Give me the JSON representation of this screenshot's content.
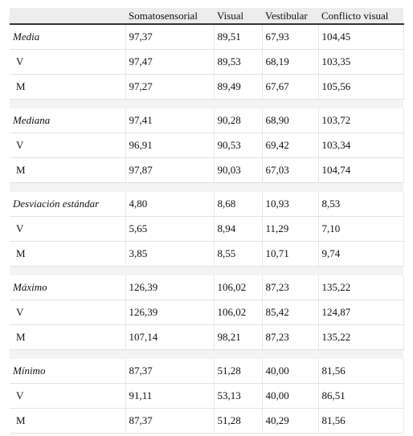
{
  "table": {
    "header": [
      "Somatosensorial",
      "Visual",
      "Vestibular",
      "Conflicto visual"
    ],
    "groups": [
      {
        "label": "Media",
        "values": [
          "97,37",
          "89,51",
          "67,93",
          "104,45"
        ],
        "rows": [
          {
            "label": "V",
            "values": [
              "97,47",
              "89,53",
              "68,19",
              "103,35"
            ]
          },
          {
            "label": "M",
            "values": [
              "97,27",
              "89,49",
              "67,67",
              "105,56"
            ]
          }
        ]
      },
      {
        "label": "Mediana",
        "values": [
          "97,41",
          "90,28",
          "68,90",
          "103,72"
        ],
        "rows": [
          {
            "label": "V",
            "values": [
              "96,91",
              "90,53",
              "69,42",
              "103,34"
            ]
          },
          {
            "label": "M",
            "values": [
              "97,87",
              "90,03",
              "67,03",
              "104,74"
            ]
          }
        ]
      },
      {
        "label": "Desviación estándar",
        "values": [
          "4,80",
          "8,68",
          "10,93",
          "8,53"
        ],
        "rows": [
          {
            "label": "V",
            "values": [
              "5,65",
              "8,94",
              "11,29",
              "7,10"
            ]
          },
          {
            "label": "M",
            "values": [
              "3,85",
              "8,55",
              "10,71",
              "9,74"
            ]
          }
        ]
      },
      {
        "label": "Máximo",
        "values": [
          "126,39",
          "106,02",
          "87,23",
          "135,22"
        ],
        "rows": [
          {
            "label": "V",
            "values": [
              "126,39",
              "106,02",
              "85,42",
              "124,87"
            ]
          },
          {
            "label": "M",
            "values": [
              "107,14",
              "98,21",
              "87,23",
              "135,22"
            ]
          }
        ]
      },
      {
        "label": "Mínimo",
        "values": [
          "87,37",
          "51,28",
          "40,00",
          "81,56"
        ],
        "rows": [
          {
            "label": "V",
            "values": [
              "91,11",
              "53,13",
              "40,00",
              "86,51"
            ]
          },
          {
            "label": "M",
            "values": [
              "87,37",
              "51,28",
              "40,29",
              "81,56"
            ]
          }
        ]
      }
    ]
  }
}
